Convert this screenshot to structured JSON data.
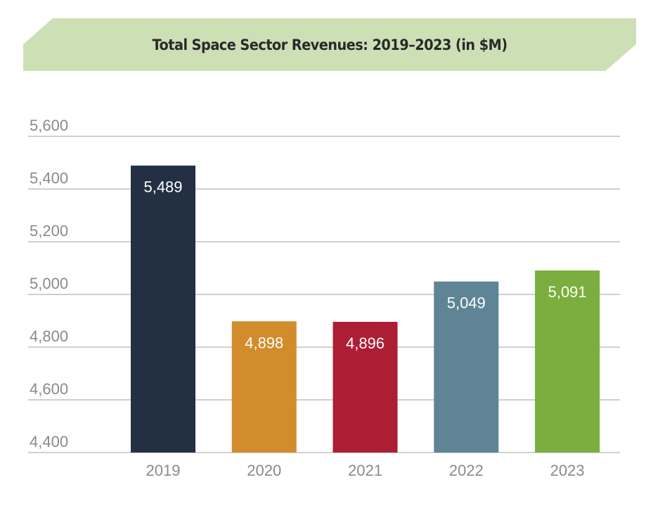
{
  "chart_data": {
    "type": "bar",
    "title": "Total Space Sector Revenues: 2019–2023 (in $M)",
    "xlabel": "",
    "ylabel": "",
    "categories": [
      "2019",
      "2020",
      "2021",
      "2022",
      "2023"
    ],
    "values": [
      5489,
      4898,
      4896,
      5049,
      5091
    ],
    "data_labels": [
      "5,489",
      "4,898",
      "4,896",
      "5,049",
      "5,091"
    ],
    "colors": [
      "#233044",
      "#d28c2b",
      "#ad1e35",
      "#5f8496",
      "#7aae3e"
    ],
    "ylim": [
      4400,
      5600
    ],
    "yticks": [
      4400,
      4600,
      4800,
      5000,
      5200,
      5400,
      5600
    ],
    "ytick_labels": [
      "4,400",
      "4,600",
      "4,800",
      "5,000",
      "5,200",
      "5,400",
      "5,600"
    ],
    "grid": true,
    "legend": "none"
  },
  "style": {
    "banner_color": "#cde0b5",
    "grid_color": "#b5b5b5",
    "tick_color": "#8a8a8a"
  }
}
